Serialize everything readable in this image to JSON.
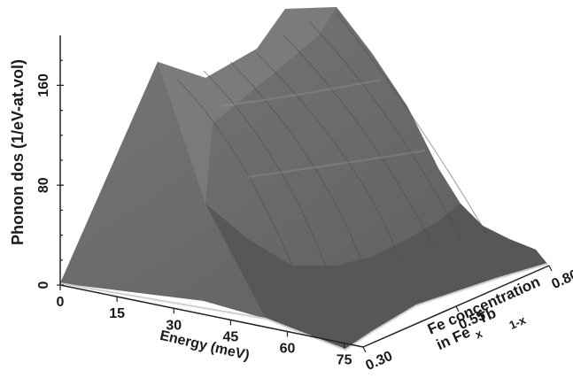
{
  "chart_data": {
    "type": "surface",
    "title": "",
    "zlabel": "Phonon dos (1/eV-at.vol)",
    "xlabel": "Energy (meV)",
    "ylabel": {
      "line1": "Fe concentration",
      "line2_prefix": "in Fe",
      "sub_x": "x",
      "element2": "Tb",
      "sub_1x": "1-x"
    },
    "x_ticks": [
      "0",
      "15",
      "30",
      "45",
      "60",
      "75"
    ],
    "y_ticks": [
      "0.30",
      "0.55",
      "0.80"
    ],
    "z_ticks": [
      "0",
      "80",
      "160"
    ],
    "xlim": [
      0,
      80
    ],
    "ylim": [
      0.3,
      0.8
    ],
    "zlim": [
      0,
      200
    ],
    "colors": {
      "surface_dark": "#2e2e2e",
      "surface_mid": "#666666",
      "surface_light": "#8a8a8a",
      "axis": "#222222"
    },
    "series": [
      {
        "y": 0.3,
        "x": [
          0,
          10,
          20,
          26,
          30,
          34,
          38,
          42,
          46,
          50,
          54,
          58,
          62,
          66,
          70,
          75
        ],
        "z": [
          0,
          70,
          145,
          175,
          188,
          170,
          130,
          95,
          65,
          45,
          35,
          28,
          25,
          22,
          20,
          18
        ]
      },
      {
        "y": 0.55,
        "x": [
          0,
          10,
          20,
          26,
          30,
          34,
          38,
          42,
          46,
          50,
          54,
          58,
          62,
          66,
          70,
          75
        ],
        "z": [
          0,
          72,
          148,
          178,
          192,
          174,
          134,
          98,
          67,
          47,
          36,
          29,
          25,
          22,
          20,
          18
        ]
      },
      {
        "y": 0.8,
        "x": [
          0,
          10,
          20,
          26,
          30,
          34,
          38,
          42,
          46,
          50,
          54,
          58,
          62,
          66,
          70,
          75
        ],
        "z": [
          0,
          74,
          150,
          181,
          195,
          178,
          138,
          100,
          69,
          48,
          37,
          30,
          26,
          23,
          21,
          19
        ]
      }
    ]
  }
}
